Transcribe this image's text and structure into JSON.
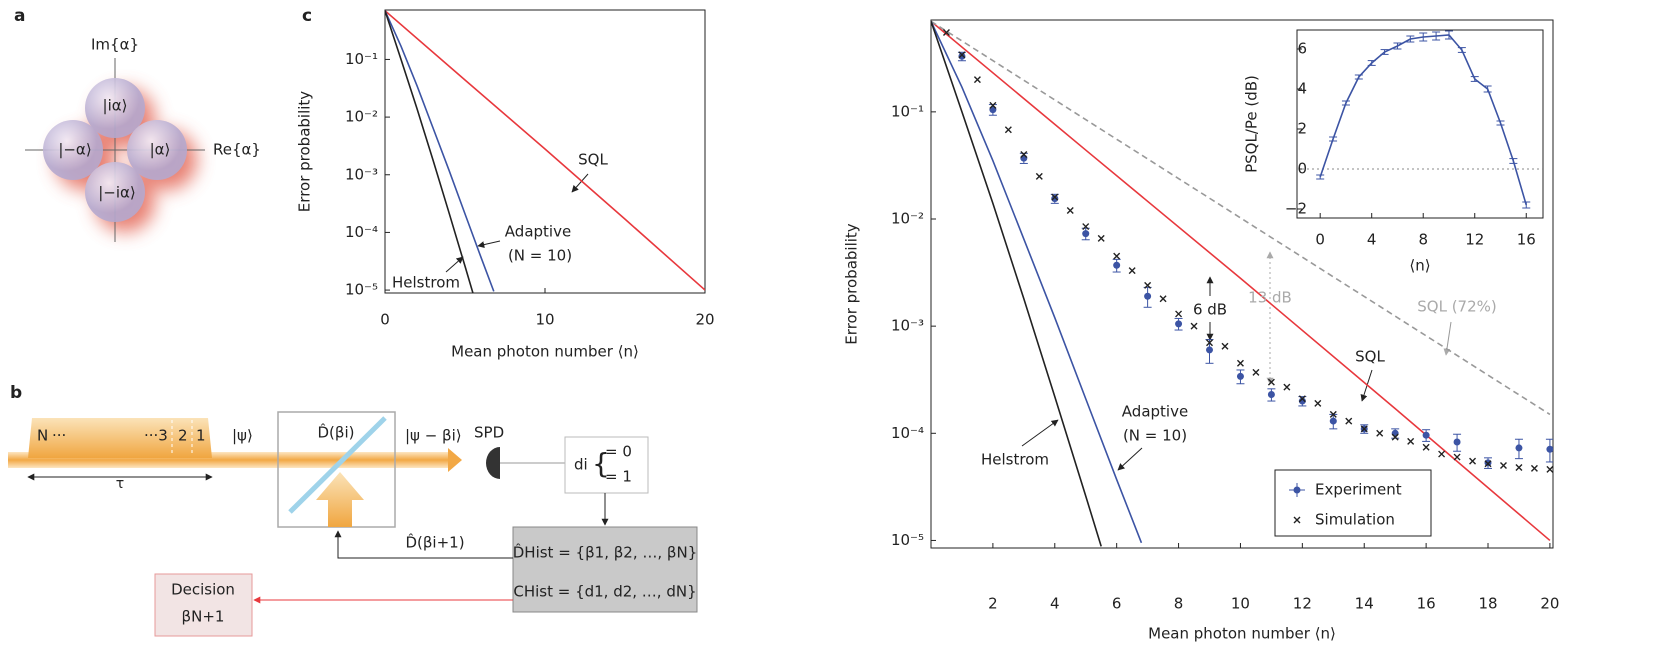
{
  "panel_a": {
    "letter": "a",
    "im_axis": "Im{α}",
    "re_axis": "Re{α}",
    "states": [
      "|iα⟩",
      "|−α⟩",
      "|α⟩",
      "|−iα⟩"
    ]
  },
  "panel_b": {
    "letter": "b",
    "pulse": [
      "N",
      "···",
      "···3",
      "2",
      "1"
    ],
    "tau": "τ",
    "psi": "|ψ⟩",
    "displacement": "D̂(βi)",
    "output": "|ψ − βi⟩",
    "detector": "SPD",
    "outcome": "di",
    "outcome_values": [
      "= 0",
      "= 1"
    ],
    "feedback": "D̂(βi+1)",
    "history": [
      "D̂Hist = {β1, β2, …, βN}",
      "CHist = {d1, d2, …, dN}"
    ],
    "decision": [
      "Decision",
      "βN+1"
    ]
  },
  "panel_c": {
    "letter": "c"
  },
  "chart_data": [
    {
      "type": "line",
      "log_y": true,
      "y_label": "Error probability",
      "x_label": "Mean photon number ⟨n⟩",
      "xlim": [
        0,
        20
      ],
      "xticks": [
        0,
        10,
        20
      ],
      "ylim": [
        8.9e-06,
        0.72
      ],
      "yticks": [
        {
          "value": 0.1,
          "label": "10⁻¹"
        },
        {
          "value": 0.01,
          "label": "10⁻²"
        },
        {
          "value": 0.001,
          "label": "10⁻³"
        },
        {
          "value": 0.0001,
          "label": "10⁻⁴"
        },
        {
          "value": 1e-05,
          "label": "10⁻⁵"
        }
      ],
      "series": [
        {
          "color": "#e8383d",
          "style": "line",
          "x": [
            0,
            5,
            10,
            15,
            20
          ],
          "values": [
            0.7,
            0.044,
            0.0028,
            0.00017,
            1e-05
          ]
        },
        {
          "color": "#3c54a4",
          "style": "line",
          "x": [
            0,
            1,
            2,
            3,
            4,
            5,
            6,
            6.8
          ],
          "values": [
            0.7,
            0.17,
            0.035,
            0.0065,
            0.0012,
            0.00021,
            3.7e-05,
            9.5e-06
          ]
        },
        {
          "color": "#222222",
          "style": "line",
          "x": [
            0,
            1,
            2,
            3,
            4,
            5,
            5.5
          ],
          "values": [
            0.7,
            0.1,
            0.014,
            0.0018,
            0.00022,
            2.6e-05,
            8.8e-06
          ]
        }
      ],
      "annotations": [
        "SQL",
        "Adaptive",
        "(N = 10)",
        "Helstrom"
      ]
    },
    {
      "type": "line",
      "log_y": true,
      "y_label": "Error probability",
      "x_label": "Mean photon number ⟨n⟩",
      "legend": "lower right",
      "xlim": [
        0,
        20.1
      ],
      "xticks": [
        2,
        4,
        6,
        8,
        10,
        12,
        14,
        16,
        18,
        20
      ],
      "ylim": [
        8.5e-06,
        0.72
      ],
      "yticks": [
        {
          "value": 0.1,
          "label": "10⁻¹"
        },
        {
          "value": 0.01,
          "label": "10⁻²"
        },
        {
          "value": 0.001,
          "label": "10⁻³"
        },
        {
          "value": 0.0001,
          "label": "10⁻⁴"
        },
        {
          "value": 1e-05,
          "label": "10⁻⁵"
        }
      ],
      "series": [
        {
          "color": "#e8383d",
          "style": "line",
          "x": [
            0,
            5,
            10,
            15,
            20
          ],
          "values": [
            0.7,
            0.044,
            0.0028,
            0.00017,
            1e-05
          ]
        },
        {
          "color": "#999999",
          "style": "dashed",
          "x": [
            0,
            20
          ],
          "values": [
            0.7,
            0.00015
          ]
        },
        {
          "color": "#3c54a4",
          "style": "line",
          "x": [
            0,
            1,
            2,
            3,
            4,
            5,
            6,
            6.8
          ],
          "values": [
            0.7,
            0.17,
            0.035,
            0.0065,
            0.0012,
            0.00021,
            3.7e-05,
            9.5e-06
          ]
        },
        {
          "color": "#222222",
          "style": "line",
          "x": [
            0,
            1,
            2,
            3,
            4,
            5,
            5.5
          ],
          "values": [
            0.7,
            0.1,
            0.014,
            0.0018,
            0.00022,
            2.6e-05,
            8.8e-06
          ]
        },
        {
          "name": "Experiment",
          "color": "#3c54a4",
          "style": "dot",
          "x": [
            1,
            2,
            3,
            4,
            5,
            6,
            7,
            8,
            9,
            10,
            11,
            12,
            13,
            14,
            15,
            16,
            17,
            18,
            19,
            20
          ],
          "values": [
            0.33,
            0.105,
            0.037,
            0.0155,
            0.0073,
            0.0037,
            0.0019,
            0.00105,
            0.0006,
            0.00034,
            0.00023,
            0.0002,
            0.00013,
            0.00011,
            0.0001,
            9.6e-05,
            8.3e-05,
            5.3e-05,
            7.3e-05,
            7.1e-05
          ],
          "errors": [
            0.03,
            0.012,
            0.004,
            0.0015,
            0.0009,
            0.0005,
            0.0004,
            0.00013,
            0.00015,
            5e-05,
            3e-05,
            2e-05,
            2e-05,
            1e-05,
            1e-05,
            1.2e-05,
            1.5e-05,
            6e-06,
            1.5e-05,
            1.7e-05
          ]
        },
        {
          "name": "Simulation",
          "color": "#222222",
          "style": "cross",
          "x": [
            0.5,
            1,
            1.5,
            2,
            2.5,
            3,
            3.5,
            4,
            4.5,
            5,
            5.5,
            6,
            6.5,
            7,
            7.5,
            8,
            8.5,
            9,
            9.5,
            10,
            10.5,
            11,
            11.5,
            12,
            12.5,
            13,
            13.5,
            14,
            14.5,
            15,
            15.5,
            16,
            16.5,
            17,
            17.5,
            18,
            18.5,
            19,
            19.5,
            20
          ],
          "values": [
            0.55,
            0.34,
            0.2,
            0.115,
            0.068,
            0.04,
            0.025,
            0.016,
            0.012,
            0.0085,
            0.0066,
            0.0045,
            0.0033,
            0.0024,
            0.0018,
            0.0013,
            0.001,
            0.0007,
            0.00065,
            0.00045,
            0.00037,
            0.0003,
            0.00027,
            0.00021,
            0.00019,
            0.00015,
            0.00013,
            0.00011,
            0.0001,
            9.2e-05,
            8.4e-05,
            7.4e-05,
            6.4e-05,
            6e-05,
            5.5e-05,
            5.2e-05,
            5e-05,
            4.8e-05,
            4.7e-05,
            4.6e-05
          ]
        }
      ],
      "annotations": [
        "6 dB",
        "13 dB",
        "SQL (72%)",
        "SQL",
        "Adaptive",
        "(N = 10)",
        "Helstrom"
      ]
    },
    {
      "type": "line",
      "y_label": "PSQL/Pe (dB)",
      "x_label": "⟨n⟩",
      "xlim": [
        -1.8,
        17.3
      ],
      "xticks": [
        0,
        4,
        8,
        12,
        16
      ],
      "ylim": [
        -2.45,
        6.95
      ],
      "yticks": [
        {
          "value": -2,
          "label": "−2"
        },
        0,
        2,
        4,
        6
      ],
      "hline": 0,
      "series": [
        {
          "color": "#3c54a4",
          "style": "line-err",
          "x": [
            0,
            1,
            2,
            3,
            4,
            5,
            6,
            7,
            8,
            9,
            10,
            11,
            12,
            13,
            14,
            15,
            16
          ],
          "values": [
            -0.4,
            1.5,
            3.3,
            4.6,
            5.3,
            5.85,
            6.15,
            6.5,
            6.6,
            6.65,
            6.7,
            5.95,
            4.5,
            4.0,
            2.3,
            0.4,
            -1.8
          ],
          "errors": [
            0.1,
            0.1,
            0.1,
            0.1,
            0.12,
            0.12,
            0.15,
            0.15,
            0.2,
            0.2,
            0.2,
            0.12,
            0.12,
            0.15,
            0.1,
            0.12,
            0.15
          ]
        }
      ]
    }
  ]
}
